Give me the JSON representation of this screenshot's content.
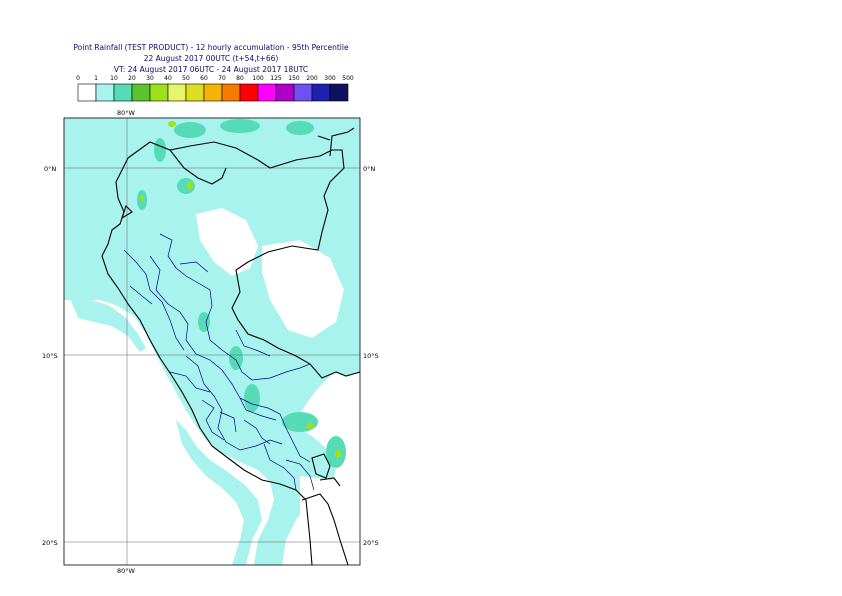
{
  "title": {
    "line1": "Point Rainfall (TEST PRODUCT) - 12 hourly accumulation - 95th Percentile",
    "line2": "22 August 2017 00UTC (t+54,t+66)",
    "line3": "VT: 24 August 2017 06UTC - 24 August 2017 18UTC"
  },
  "legend": {
    "thresholds": [
      "0",
      "1",
      "10",
      "20",
      "30",
      "40",
      "50",
      "60",
      "70",
      "80",
      "100",
      "125",
      "150",
      "200",
      "300",
      "500"
    ],
    "colors": [
      "#ffffff",
      "#a8f3ee",
      "#56dbb7",
      "#5bc32d",
      "#9fe01a",
      "#e6f56a",
      "#dede20",
      "#f5b400",
      "#f57c00",
      "#ff0000",
      "#ff00ff",
      "#b000c8",
      "#7050f0",
      "#2020b0",
      "#101060"
    ]
  },
  "map": {
    "lon_labels": {
      "top": "80°W",
      "bottom": "80°W"
    },
    "lat_labels": [
      "0°N",
      "10°S",
      "20°S"
    ],
    "colors": {
      "ocean": "#ffffff",
      "rain_light": "#a8f3ee",
      "rain_mod": "#56dbb7",
      "rain_heavy": "#9fe01a",
      "country_border": "#000000",
      "admin_border": "#00008b",
      "grid": "#606060"
    }
  }
}
